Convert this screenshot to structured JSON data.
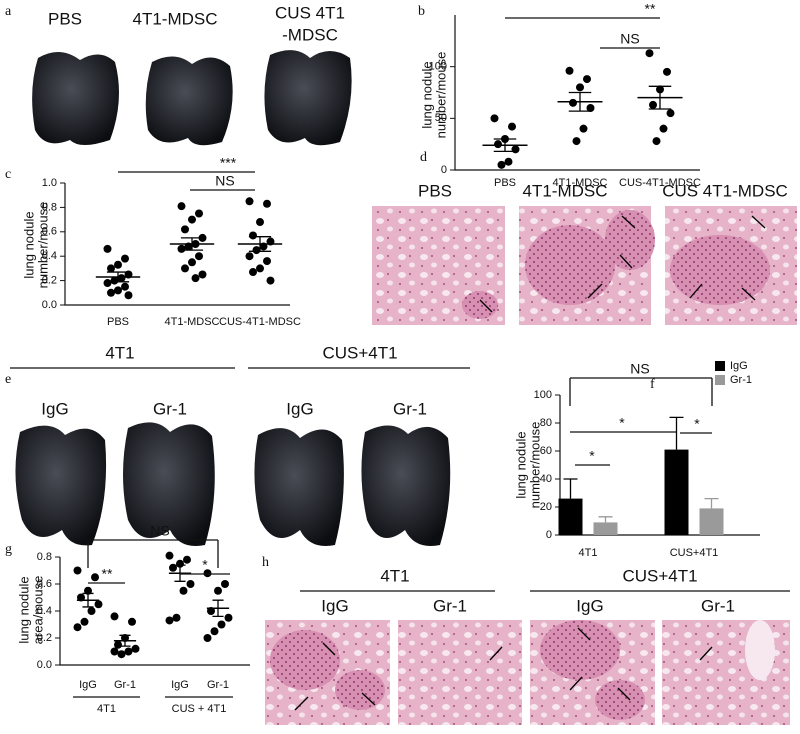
{
  "panel_labels": [
    "a",
    "b",
    "c",
    "d",
    "e",
    "f",
    "g",
    "h"
  ],
  "panel_a": {
    "labels": [
      "PBS",
      "4T1-MDSC",
      "CUS 4T1",
      "-MDSC"
    ]
  },
  "panel_d": {
    "labels": [
      "PBS",
      "4T1-MDSC",
      "CUS 4T1-MDSC"
    ]
  },
  "panel_e": {
    "groups": [
      "4T1",
      "CUS+4T1"
    ],
    "labels": [
      "IgG",
      "Gr-1",
      "IgG",
      "Gr-1"
    ]
  },
  "panel_h": {
    "groups": [
      "4T1",
      "CUS+4T1"
    ],
    "labels": [
      "IgG",
      "Gr-1",
      "IgG",
      "Gr-1"
    ]
  },
  "chart_data": [
    {
      "type": "dot",
      "ylabel": [
        "lung nodule",
        "number/mouse"
      ],
      "categories": [
        "PBS",
        "4T1-MDSC",
        "CUS-4T1-MDSC"
      ],
      "values": [
        [
          50,
          42,
          30,
          25,
          20,
          8,
          5
        ],
        [
          96,
          88,
          80,
          65,
          60,
          40,
          28
        ],
        [
          113,
          95,
          78,
          63,
          55,
          40,
          28
        ]
      ],
      "means": [
        24,
        66,
        70
      ],
      "errors": [
        6,
        9,
        11
      ],
      "ylim": [
        0,
        150
      ],
      "yticks": [
        0,
        50,
        100
      ],
      "annotations": [
        "**",
        "NS"
      ]
    },
    {
      "type": "dot",
      "ylabel": [
        "lung nodule",
        "number/mouse"
      ],
      "categories": [
        "PBS",
        "4T1-MDSC",
        "CUS-4T1-MDSC"
      ],
      "values": [
        [
          0.46,
          0.38,
          0.33,
          0.3,
          0.25,
          0.22,
          0.2,
          0.18,
          0.15,
          0.12,
          0.1,
          0.08
        ],
        [
          0.81,
          0.75,
          0.7,
          0.62,
          0.55,
          0.5,
          0.48,
          0.46,
          0.4,
          0.35,
          0.3,
          0.25,
          0.22
        ],
        [
          0.85,
          0.83,
          0.68,
          0.57,
          0.52,
          0.48,
          0.45,
          0.4,
          0.36,
          0.3,
          0.27,
          0.2
        ]
      ],
      "means": [
        0.23,
        0.5,
        0.5
      ],
      "errors": [
        0.04,
        0.05,
        0.06
      ],
      "ylim": [
        0,
        1
      ],
      "yticks": [
        {
          "value": 0,
          "label": "0.0"
        },
        0.2,
        0.4,
        0.6,
        0.8,
        {
          "value": 1,
          "label": "1.0"
        }
      ],
      "annotations": [
        "***",
        "NS"
      ]
    },
    {
      "type": "bar",
      "ylabel": [
        "lung nodule",
        "number/mouse"
      ],
      "categories": [
        "4T1",
        "CUS+4T1"
      ],
      "series": [
        {
          "name": "IgG",
          "color": "#000000",
          "values": [
            26,
            61
          ],
          "errors": [
            14,
            23
          ]
        },
        {
          "name": "Gr-1",
          "color": "#9a9a9a",
          "values": [
            9,
            19
          ],
          "errors": [
            4,
            7
          ]
        }
      ],
      "ylim": [
        0,
        100
      ],
      "yticks": [
        0,
        20,
        40,
        60,
        80,
        100
      ],
      "legend": "upper right",
      "annotations": [
        "NS",
        "*",
        "*",
        "*"
      ]
    },
    {
      "type": "dot",
      "ylabel": [
        "lung nodule",
        "area/mouse"
      ],
      "categories": [
        "IgG",
        "Gr-1",
        "IgG",
        "Gr-1"
      ],
      "groups": [
        "4T1",
        "CUS + 4T1"
      ],
      "values": [
        [
          0.7,
          0.65,
          0.55,
          0.5,
          0.45,
          0.4,
          0.32,
          0.28
        ],
        [
          0.36,
          0.32,
          0.2,
          0.15,
          0.12,
          0.1,
          0.08,
          0.1
        ],
        [
          0.81,
          0.78,
          0.75,
          0.72,
          0.6,
          0.55,
          0.35,
          0.33
        ],
        [
          0.68,
          0.6,
          0.55,
          0.4,
          0.35,
          0.3,
          0.25,
          0.2
        ]
      ],
      "means": [
        0.48,
        0.18,
        0.68,
        0.42
      ],
      "errors": [
        0.05,
        0.04,
        0.06,
        0.06
      ],
      "ylim": [
        0,
        0.8
      ],
      "yticks": [
        {
          "value": 0,
          "label": "0.0"
        },
        0.2,
        0.4,
        0.6,
        0.8
      ],
      "annotations": [
        "NS",
        "**",
        "*"
      ]
    }
  ]
}
